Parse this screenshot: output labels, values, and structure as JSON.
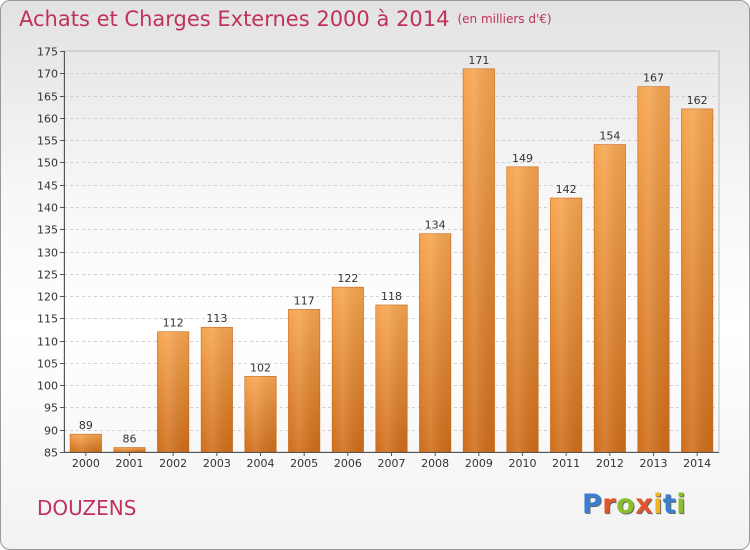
{
  "header": {
    "title": "Achats et Charges Externes 2000 à 2014",
    "unit": "(en milliers d'€)"
  },
  "commune": "DOUZENS",
  "logo": {
    "text": "Proxiti",
    "letters": [
      {
        "char": "P",
        "color": "#3a7fcf"
      },
      {
        "char": "r",
        "color": "#e0552b"
      },
      {
        "char": "o",
        "color": "#8cbd2f"
      },
      {
        "char": "x",
        "color": "#e0552b"
      },
      {
        "char": "i",
        "color": "#f2b51d"
      },
      {
        "char": "t",
        "color": "#3a7fcf"
      },
      {
        "char": "i",
        "color": "#8cbd2f"
      }
    ]
  },
  "chart_data": {
    "type": "bar",
    "title": "Achats et Charges Externes 2000 à 2014",
    "subtitle": "(en milliers d'€)",
    "xlabel": "",
    "ylabel": "",
    "categories": [
      "2000",
      "2001",
      "2002",
      "2003",
      "2004",
      "2005",
      "2006",
      "2007",
      "2008",
      "2009",
      "2010",
      "2011",
      "2012",
      "2013",
      "2014"
    ],
    "values": [
      89,
      86,
      112,
      113,
      102,
      117,
      122,
      118,
      134,
      171,
      149,
      142,
      154,
      167,
      162
    ],
    "ylim": [
      85,
      175
    ],
    "yticks": [
      85,
      90,
      95,
      100,
      105,
      110,
      115,
      120,
      125,
      130,
      135,
      140,
      145,
      150,
      155,
      160,
      165,
      170,
      175
    ],
    "grid": true,
    "bar_color": "#f0903c",
    "legend": "none"
  }
}
